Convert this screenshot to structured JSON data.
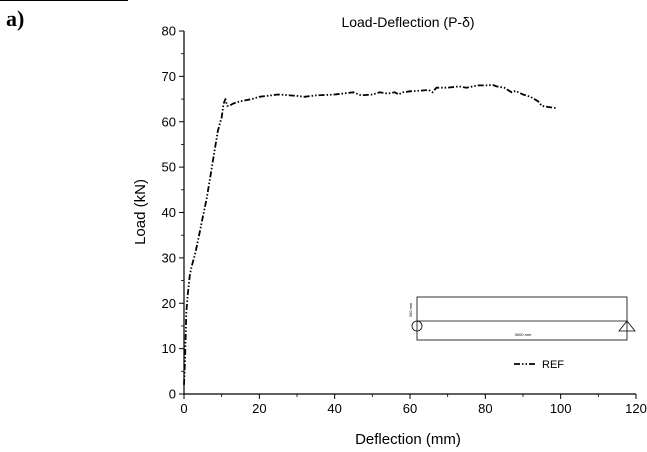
{
  "panel_label": "a)",
  "chart_data": {
    "type": "line",
    "title": "Load-Deflection (P-δ)",
    "xlabel": "Deflection (mm)",
    "ylabel": "Load (kN)",
    "xlim": [
      0,
      120
    ],
    "ylim": [
      0,
      80
    ],
    "xticks": [
      0,
      20,
      40,
      60,
      80,
      100,
      120
    ],
    "yticks": [
      0,
      10,
      20,
      30,
      40,
      50,
      60,
      70,
      80
    ],
    "grid": false,
    "legend_position": "bottom-right",
    "series": [
      {
        "name": "REF",
        "color": "#000000",
        "line_style": "dash-dot-dot",
        "x": [
          0,
          0.3,
          0.6,
          1.0,
          1.5,
          2.0,
          3.0,
          4.0,
          5.0,
          6.0,
          7.0,
          8.0,
          9.0,
          10.0,
          10.5,
          11.0,
          11.5,
          12.0,
          13.0,
          15.0,
          18.0,
          20.0,
          25.0,
          30.0,
          32.0,
          35.0,
          40.0,
          43.0,
          45.0,
          47.0,
          50.0,
          52.0,
          54.0,
          56.0,
          57.0,
          58.0,
          60.0,
          62.0,
          65.0,
          66.0,
          67.0,
          70.0,
          73.0,
          75.0,
          78.0,
          80.0,
          82.0,
          83.0,
          85.0,
          87.0,
          88.0,
          90.0,
          92.0,
          94.0,
          95.0,
          97.0,
          99.0
        ],
        "y": [
          2,
          8,
          18,
          22,
          26,
          28,
          31,
          35,
          39,
          43,
          48,
          53,
          58,
          61,
          64,
          65,
          63.5,
          63.5,
          64,
          64.5,
          65,
          65.5,
          66,
          65.7,
          65.5,
          65.8,
          66,
          66.3,
          66.5,
          65.8,
          66,
          66.5,
          66.2,
          66.5,
          66,
          66.5,
          66.7,
          66.8,
          67,
          66.5,
          67.5,
          67.5,
          67.8,
          67.5,
          68,
          68,
          68.1,
          67.8,
          67.5,
          66.5,
          66.8,
          66,
          65.5,
          64.5,
          63.5,
          63.2,
          63
        ]
      }
    ]
  },
  "inset": {
    "height_label": "300 mm",
    "length_label": "3000 mm"
  }
}
